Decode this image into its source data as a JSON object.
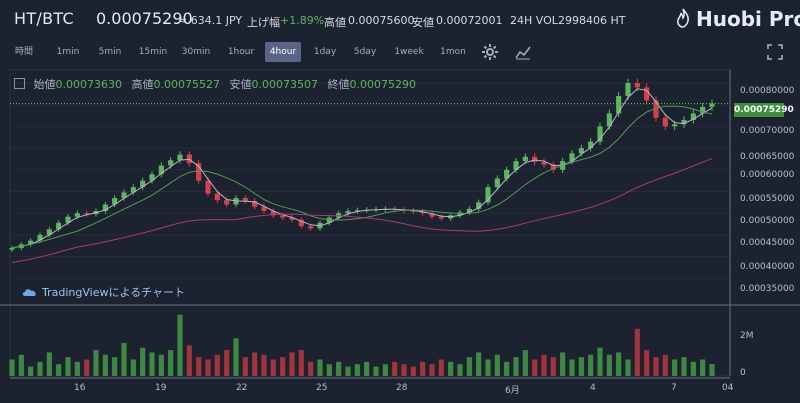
{
  "header": {
    "pair": "HT/BTC",
    "price": "0.00075290",
    "jpy": "≈ 634.1 JPY",
    "change_label": "上げ幅",
    "change_value": "+1.89%",
    "high_label": "高値",
    "high_value": "0.00075600",
    "low_label": "安値",
    "low_value": "0.00072001",
    "vol_label": "24H VOL",
    "vol_value": "2998406 HT",
    "logo": "Huobi Pro"
  },
  "timeframes": [
    "時間",
    "1min",
    "5min",
    "15min",
    "30min",
    "1hour",
    "4hour",
    "1day",
    "5day",
    "1week",
    "1mon"
  ],
  "active_timeframe": "4hour",
  "icons": [
    "gear-icon",
    "indicator-icon",
    "fullscreen-icon"
  ],
  "ohlc": {
    "open_label": "始値",
    "open": "0.00073630",
    "high_label": "高値",
    "high": "0.00075527",
    "low_label": "安値",
    "low": "0.00073507",
    "close_label": "終値",
    "close": "0.00075290"
  },
  "watermark": "TradingViewによるチャート",
  "current_price_tag": "0.00075290",
  "colors": {
    "up": "#58b85a",
    "down": "#d8414b",
    "ma1": "#b7b7c9",
    "ma2": "#4f9d54",
    "ma3": "#b0347e",
    "accent": "#5a6486"
  },
  "chart_data": {
    "type": "candlestick",
    "y_ticks": [
      "0.00080000",
      "0.00075000",
      "0.00070000",
      "0.00065000",
      "0.00060000",
      "0.00055000",
      "0.00050000",
      "0.00045000",
      "0.00040000",
      "0.00035000"
    ],
    "vol_ticks": [
      "2M",
      "0"
    ],
    "x_ticks": [
      "16",
      "19",
      "22",
      "25",
      "28",
      "6月",
      "4",
      "7",
      "04"
    ],
    "close_series": [
      0.00042,
      0.000428,
      0.000437,
      0.00045,
      0.000463,
      0.000478,
      0.000492,
      0.0005,
      0.000498,
      0.000505,
      0.00052,
      0.000535,
      0.000548,
      0.00056,
      0.000575,
      0.00059,
      0.00061,
      0.000622,
      0.000635,
      0.000615,
      0.000575,
      0.000545,
      0.00053,
      0.00052,
      0.000535,
      0.000528,
      0.000515,
      0.000505,
      0.000495,
      0.00049,
      0.000485,
      0.00047,
      0.000465,
      0.000478,
      0.00049,
      0.0005,
      0.000505,
      0.000507,
      0.000508,
      0.000509,
      0.00051,
      0.000508,
      0.000506,
      0.000504,
      0.0005,
      0.000492,
      0.000488,
      0.000495,
      0.000502,
      0.00051,
      0.000525,
      0.00056,
      0.00058,
      0.0006,
      0.00062,
      0.00063,
      0.000618,
      0.000612,
      0.0006,
      0.00062,
      0.000638,
      0.00065,
      0.000665,
      0.0007,
      0.00073,
      0.00077,
      0.0008,
      0.00079,
      0.00076,
      0.00072,
      0.0007,
      0.000705,
      0.000715,
      0.00073,
      0.000745,
      0.000753
    ],
    "volume_series": [
      0.7,
      0.9,
      0.4,
      0.6,
      1.0,
      0.5,
      0.8,
      0.6,
      0.7,
      1.1,
      0.9,
      0.8,
      1.4,
      0.7,
      1.2,
      1.0,
      0.9,
      1.1,
      2.6,
      1.3,
      0.8,
      0.7,
      0.9,
      1.1,
      1.6,
      0.8,
      1.0,
      0.9,
      0.7,
      0.8,
      1.0,
      1.1,
      0.6,
      0.7,
      0.5,
      0.6,
      0.4,
      0.5,
      0.6,
      0.4,
      0.5,
      0.6,
      0.5,
      0.4,
      0.6,
      0.5,
      0.7,
      0.6,
      0.5,
      0.8,
      1.0,
      0.7,
      0.9,
      0.6,
      0.8,
      1.1,
      0.7,
      0.9,
      0.8,
      1.0,
      0.7,
      0.8,
      0.9,
      1.2,
      0.9,
      1.0,
      0.7,
      2.0,
      1.1,
      0.8,
      0.9,
      0.7,
      0.8,
      0.6,
      0.7,
      0.5
    ]
  }
}
